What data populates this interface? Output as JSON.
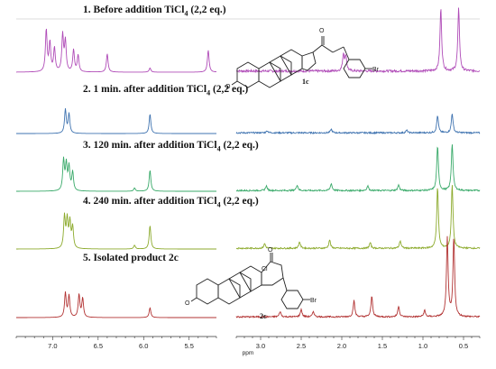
{
  "chart_data": {
    "type": "line",
    "x_axis": {
      "label": "ppm",
      "reversed": true,
      "segments": [
        [
          7.4,
          5.2
        ],
        [
          3.3,
          0.3
        ]
      ],
      "ticks": [
        "7.0",
        "6.5",
        "6.0",
        "5.5",
        "3.0",
        "2.5",
        "2.0",
        "1.5",
        "1.0",
        "0.5"
      ]
    },
    "colors": {
      "spectrum1": "#b04cb8",
      "spectrum2": "#3f73b0",
      "spectrum3": "#3aaa6a",
      "spectrum4": "#8caa2c",
      "spectrum5": "#b23333"
    },
    "series": [
      {
        "name": "1. Before addition TiCl4 (2,2 eq.)",
        "label_main": "1. Before addition TiCl",
        "label_sub": "4",
        "label_tail": " (2,2 eq.)",
        "compound": "1c",
        "peaks": [
          {
            "ppm": 7.07,
            "h": 0.8
          },
          {
            "ppm": 7.03,
            "h": 0.55
          },
          {
            "ppm": 6.98,
            "h": 0.45
          },
          {
            "ppm": 6.89,
            "h": 0.7
          },
          {
            "ppm": 6.86,
            "h": 0.58
          },
          {
            "ppm": 6.77,
            "h": 0.42
          },
          {
            "ppm": 6.72,
            "h": 0.32
          },
          {
            "ppm": 6.4,
            "h": 0.35
          },
          {
            "ppm": 5.93,
            "h": 0.08
          },
          {
            "ppm": 5.29,
            "h": 0.42
          },
          {
            "ppm": 1.98,
            "h": 0.32
          },
          {
            "ppm": 1.95,
            "h": 0.28
          },
          {
            "ppm": 0.78,
            "h": 1.2
          },
          {
            "ppm": 0.56,
            "h": 1.2
          }
        ]
      },
      {
        "name": "2. 1 min. after addition TiCl4 (2,2 eq.)",
        "label_main": "2. 1 min. after addition TiCl",
        "label_sub": "4",
        "label_tail": " (2,2 eq.)",
        "compound": "",
        "peaks": [
          {
            "ppm": 6.86,
            "h": 0.55
          },
          {
            "ppm": 6.82,
            "h": 0.45
          },
          {
            "ppm": 5.93,
            "h": 0.45
          },
          {
            "ppm": 2.92,
            "h": 0.05
          },
          {
            "ppm": 2.13,
            "h": 0.08
          },
          {
            "ppm": 1.2,
            "h": 0.06
          },
          {
            "ppm": 0.82,
            "h": 0.4
          },
          {
            "ppm": 0.64,
            "h": 0.45
          }
        ]
      },
      {
        "name": "3. 120 min. after addition TiCl4 (2,2 eq.)",
        "label_main": "3. 120 min. after addition TiCl",
        "label_sub": "4",
        "label_tail": " (2,2 eq.)",
        "compound": "",
        "peaks": [
          {
            "ppm": 6.88,
            "h": 0.65
          },
          {
            "ppm": 6.85,
            "h": 0.55
          },
          {
            "ppm": 6.82,
            "h": 0.5
          },
          {
            "ppm": 6.78,
            "h": 0.4
          },
          {
            "ppm": 6.1,
            "h": 0.07
          },
          {
            "ppm": 5.93,
            "h": 0.45
          },
          {
            "ppm": 2.93,
            "h": 0.1
          },
          {
            "ppm": 2.55,
            "h": 0.12
          },
          {
            "ppm": 2.13,
            "h": 0.15
          },
          {
            "ppm": 1.68,
            "h": 0.1
          },
          {
            "ppm": 1.3,
            "h": 0.12
          },
          {
            "ppm": 0.82,
            "h": 0.95
          },
          {
            "ppm": 0.64,
            "h": 1.0
          }
        ]
      },
      {
        "name": "4. 240 min. after addition TiCl4 (2,2 eq.)",
        "label_main": "4. 240 min. after addition TiCl",
        "label_sub": "4",
        "label_tail": " (2,2 eq.)",
        "compound": "",
        "peaks": [
          {
            "ppm": 6.87,
            "h": 0.68
          },
          {
            "ppm": 6.84,
            "h": 0.6
          },
          {
            "ppm": 6.81,
            "h": 0.55
          },
          {
            "ppm": 6.78,
            "h": 0.45
          },
          {
            "ppm": 6.1,
            "h": 0.08
          },
          {
            "ppm": 5.93,
            "h": 0.5
          },
          {
            "ppm": 2.95,
            "h": 0.1
          },
          {
            "ppm": 2.52,
            "h": 0.14
          },
          {
            "ppm": 2.15,
            "h": 0.18
          },
          {
            "ppm": 1.65,
            "h": 0.12
          },
          {
            "ppm": 1.28,
            "h": 0.16
          },
          {
            "ppm": 0.82,
            "h": 1.3
          },
          {
            "ppm": 0.64,
            "h": 1.35
          }
        ]
      },
      {
        "name": "5. Isolated product 2c",
        "label_main": "5. Isolated product 2c",
        "label_sub": "",
        "label_tail": "",
        "compound": "2c",
        "peaks": [
          {
            "ppm": 6.86,
            "h": 0.45
          },
          {
            "ppm": 6.82,
            "h": 0.4
          },
          {
            "ppm": 6.71,
            "h": 0.42
          },
          {
            "ppm": 6.67,
            "h": 0.35
          },
          {
            "ppm": 5.93,
            "h": 0.18
          },
          {
            "ppm": 2.76,
            "h": 0.1
          },
          {
            "ppm": 2.5,
            "h": 0.14
          },
          {
            "ppm": 2.35,
            "h": 0.1
          },
          {
            "ppm": 1.85,
            "h": 0.3
          },
          {
            "ppm": 1.63,
            "h": 0.38
          },
          {
            "ppm": 1.3,
            "h": 0.2
          },
          {
            "ppm": 0.98,
            "h": 0.12
          },
          {
            "ppm": 0.7,
            "h": 1.45
          },
          {
            "ppm": 0.62,
            "h": 1.45
          }
        ]
      }
    ],
    "structure_labels": {
      "struct1": {
        "o_top": "O",
        "o_ring": "O",
        "br": "Br"
      },
      "struct2": {
        "o_top": "O",
        "o_ring": "O",
        "cl": "Cl",
        "br": "Br"
      }
    }
  }
}
